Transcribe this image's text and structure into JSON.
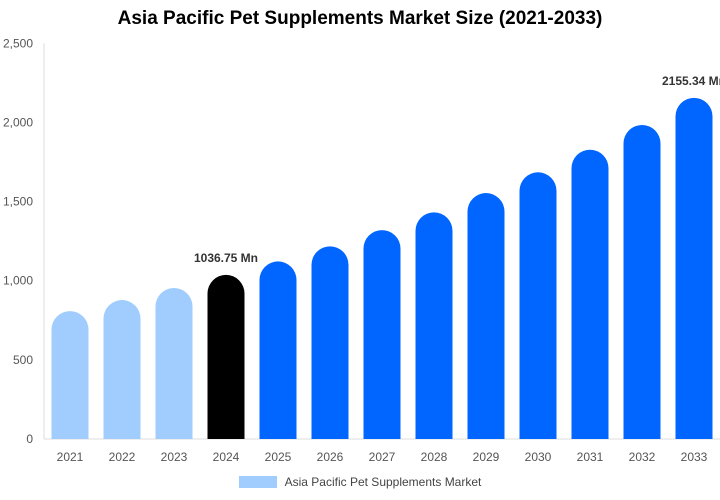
{
  "chart_data": {
    "type": "bar",
    "title": "Asia Pacific Pet Supplements Market Size (2021-2033)",
    "categories": [
      "2021",
      "2022",
      "2023",
      "2024",
      "2025",
      "2026",
      "2027",
      "2028",
      "2029",
      "2030",
      "2031",
      "2032",
      "2033"
    ],
    "series": [
      {
        "name": "Asia Pacific Pet Supplements Market",
        "values": [
          808,
          878,
          954,
          1036.75,
          1122,
          1217,
          1320,
          1432,
          1554,
          1685,
          1828,
          1984,
          2155.34
        ]
      }
    ],
    "data_labels": {
      "2024": "1036.75 Mn",
      "2033": "2155.34 Mn"
    },
    "ylim": [
      0,
      2500
    ],
    "yticks": [
      0,
      500,
      1000,
      1500,
      2000,
      2500
    ],
    "ytick_labels": [
      "0",
      "500",
      "1,000",
      "1,500",
      "2,000",
      "2,500"
    ],
    "xlabel": "",
    "ylabel": "",
    "grid": false,
    "legend_position": "bottom",
    "colors": {
      "historical": "#a0cdfd",
      "base_year": "#000000",
      "forecast": "#0066ff",
      "legend": "#a0cdfd"
    }
  }
}
